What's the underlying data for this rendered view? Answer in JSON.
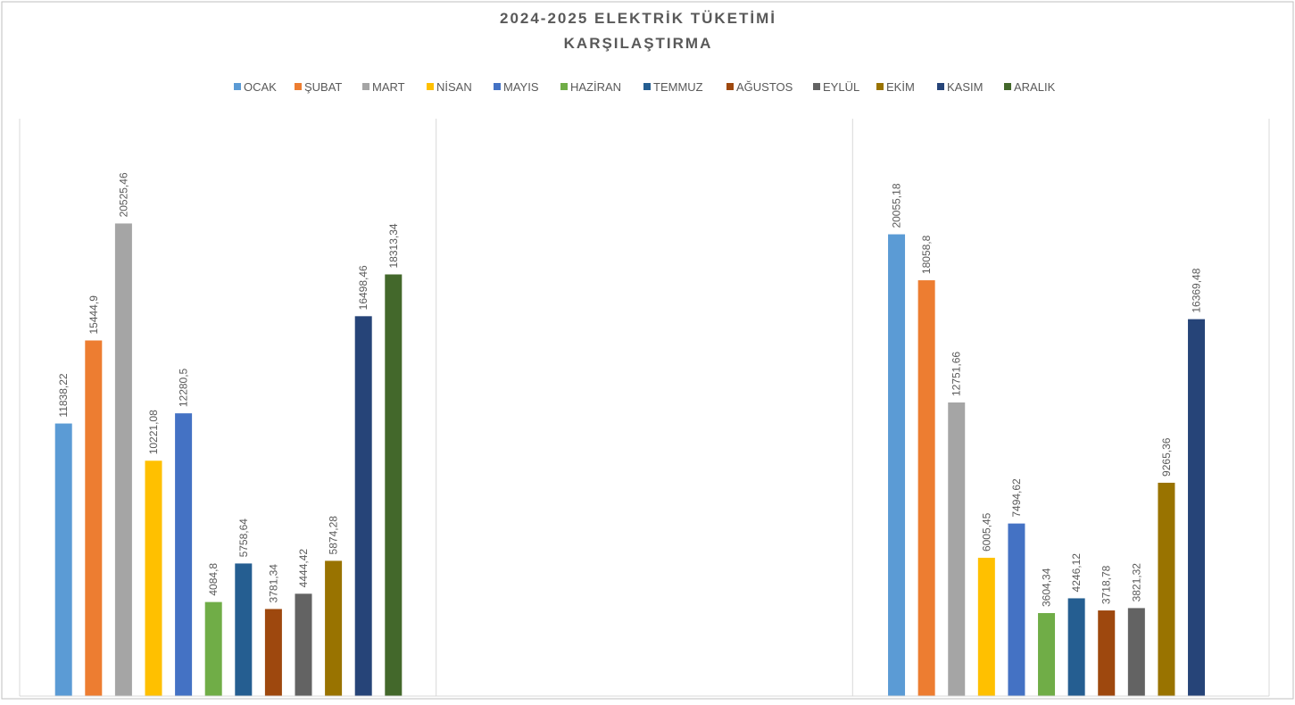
{
  "chart_data": {
    "type": "bar",
    "title_line1": "2024-2025 ELEKTRİK TÜKETİMİ",
    "title_line2": "KARŞILAŞTIRMA",
    "xlabel": "",
    "ylabel": "",
    "ylim": [
      0,
      24000
    ],
    "grid": "vertical category separators",
    "legend_position": "top",
    "groups": [
      "",
      "",
      ""
    ],
    "series": [
      {
        "name": "OCAK",
        "color": "#5B9BD5",
        "values": [
          11838.22,
          null,
          20055.18
        ],
        "labels": [
          "11838,22",
          "",
          "20055,18"
        ]
      },
      {
        "name": "ŞUBAT",
        "color": "#ED7D31",
        "values": [
          15444.9,
          null,
          18058.8
        ],
        "labels": [
          "15444,9",
          "",
          "18058,8"
        ]
      },
      {
        "name": "MART",
        "color": "#A5A5A5",
        "values": [
          20525.46,
          null,
          12751.66
        ],
        "labels": [
          "20525,46",
          "",
          "12751,66"
        ]
      },
      {
        "name": "NİSAN",
        "color": "#FFC000",
        "values": [
          10221.08,
          null,
          6005.45
        ],
        "labels": [
          "10221,08",
          "",
          "6005,45"
        ]
      },
      {
        "name": "MAYIS",
        "color": "#4472C4",
        "values": [
          12280.5,
          null,
          7494.62
        ],
        "labels": [
          "12280,5",
          "",
          "7494,62"
        ]
      },
      {
        "name": "HAZİRAN",
        "color": "#70AD47",
        "values": [
          4084.8,
          null,
          3604.34
        ],
        "labels": [
          "4084,8",
          "",
          "3604,34"
        ]
      },
      {
        "name": "TEMMUZ",
        "color": "#255E91",
        "values": [
          5758.64,
          null,
          4246.12
        ],
        "labels": [
          "5758,64",
          "",
          "4246,12"
        ]
      },
      {
        "name": "AĞUSTOS",
        "color": "#9E480E",
        "values": [
          3781.34,
          null,
          3718.78
        ],
        "labels": [
          "3781,34",
          "",
          "3718,78"
        ]
      },
      {
        "name": "EYLÜL",
        "color": "#636363",
        "values": [
          4444.42,
          null,
          3821.32
        ],
        "labels": [
          "4444,42",
          "",
          "3821,32"
        ]
      },
      {
        "name": "EKİM",
        "color": "#997300",
        "values": [
          5874.28,
          null,
          9265.36
        ],
        "labels": [
          "5874,28",
          "",
          "9265,36"
        ]
      },
      {
        "name": "KASIM",
        "color": "#264478",
        "values": [
          16498.46,
          null,
          16369.48
        ],
        "labels": [
          "16498,46",
          "",
          "16369,48"
        ]
      },
      {
        "name": "ARALIK",
        "color": "#43682B",
        "values": [
          18313.34,
          null,
          null
        ],
        "labels": [
          "18313,34",
          "",
          ""
        ]
      }
    ]
  }
}
